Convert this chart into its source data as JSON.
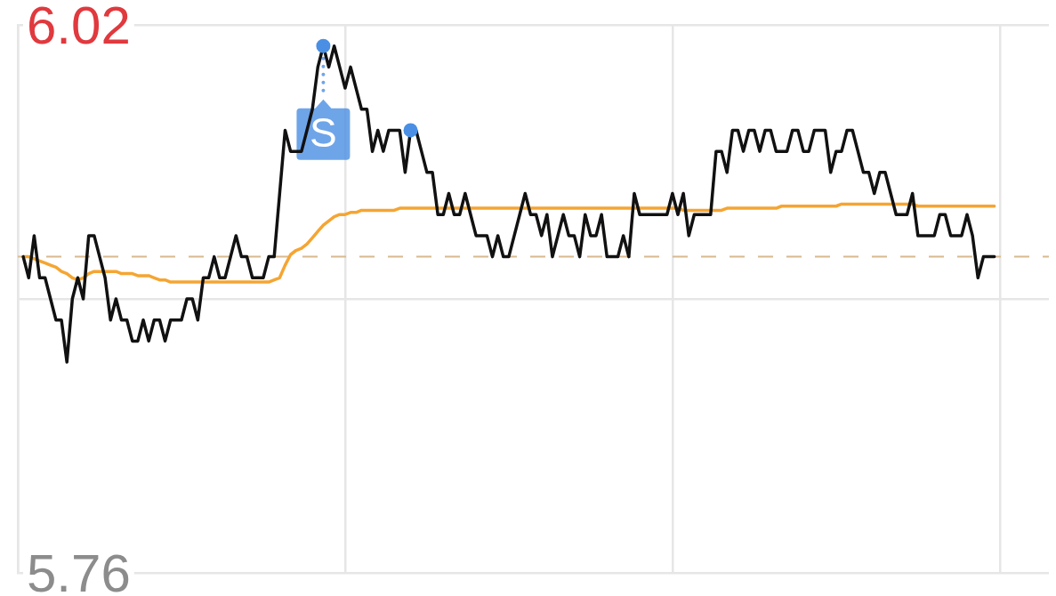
{
  "chart_data": {
    "type": "line",
    "categories": [
      null,
      null,
      null,
      null,
      null,
      null,
      null,
      null,
      null,
      null,
      null,
      null,
      null,
      null,
      null,
      null,
      null,
      null,
      null,
      null,
      null,
      null,
      null,
      null,
      null,
      null,
      null,
      null,
      null,
      null,
      null,
      null,
      null,
      null,
      null,
      null,
      null,
      null,
      null,
      null,
      null,
      null,
      null,
      null,
      null,
      null,
      null,
      null,
      null,
      null,
      null,
      null,
      null,
      null,
      null,
      null,
      null,
      null,
      null,
      null,
      null,
      null,
      null,
      null,
      null,
      null,
      null,
      null,
      null,
      null,
      null,
      null,
      null,
      null,
      null,
      null,
      null,
      null,
      null,
      null,
      null,
      null,
      null,
      null,
      null,
      null,
      null,
      null,
      null,
      null,
      null,
      null,
      null,
      null,
      null,
      null,
      null,
      null,
      null,
      null,
      null,
      null,
      null,
      null,
      null,
      null,
      null,
      null,
      null,
      null,
      null,
      null,
      null,
      null,
      null,
      null,
      null,
      null,
      null,
      null,
      null,
      null,
      null,
      null,
      null,
      null,
      null,
      null,
      null,
      null,
      null,
      null,
      null,
      null,
      null,
      null,
      null,
      null,
      null,
      null,
      null,
      null,
      null,
      null,
      null,
      null,
      null,
      null,
      null,
      null,
      null,
      null,
      null,
      null,
      null,
      null,
      null,
      null,
      null,
      null,
      null,
      null,
      null,
      null,
      null,
      null,
      null,
      null,
      null,
      null,
      null,
      null,
      null,
      null,
      null,
      null,
      null,
      null,
      null,
      null,
      null,
      null,
      null,
      null,
      null,
      null,
      null,
      null,
      null,
      null
    ],
    "series": [
      {
        "color": "#f5a532",
        "values": [
          null,
          5.91,
          5.91,
          5.909,
          5.908,
          5.907,
          5.906,
          5.905,
          5.903,
          5.902,
          5.9,
          5.899,
          5.9,
          5.902,
          5.903,
          5.903,
          5.903,
          5.903,
          5.903,
          5.902,
          5.902,
          5.902,
          5.901,
          5.901,
          5.901,
          5.9,
          5.899,
          5.899,
          5.898,
          5.898,
          5.898,
          5.898,
          5.898,
          5.898,
          5.898,
          5.898,
          5.898,
          5.898,
          5.898,
          5.898,
          5.898,
          5.898,
          5.898,
          5.898,
          5.898,
          5.898,
          5.898,
          5.899,
          5.9,
          5.906,
          5.911,
          5.913,
          5.914,
          5.916,
          5.919,
          5.922,
          5.925,
          5.927,
          5.929,
          5.93,
          5.93,
          5.931,
          5.931,
          5.932,
          5.932,
          5.932,
          5.932,
          5.932,
          5.932,
          5.932,
          5.933,
          5.933,
          5.933,
          5.933,
          5.933,
          5.933,
          5.933,
          5.933,
          5.933,
          5.933,
          5.933,
          5.933,
          5.933,
          5.933,
          5.933,
          5.933,
          5.933,
          5.933,
          5.933,
          5.933,
          5.933,
          5.933,
          5.933,
          5.933,
          5.933,
          5.933,
          5.933,
          5.933,
          5.933,
          5.933,
          5.933,
          5.933,
          5.933,
          5.933,
          5.933,
          5.933,
          5.933,
          5.933,
          5.933,
          5.933,
          5.933,
          5.933,
          5.933,
          5.933,
          5.933,
          5.933,
          5.933,
          5.933,
          5.933,
          5.933,
          5.933,
          5.933,
          5.932,
          5.932,
          5.932,
          5.932,
          5.932,
          5.932,
          5.932,
          5.932,
          5.933,
          5.933,
          5.933,
          5.933,
          5.933,
          5.933,
          5.933,
          5.933,
          5.933,
          5.933,
          5.934,
          5.934,
          5.934,
          5.934,
          5.934,
          5.934,
          5.934,
          5.934,
          5.934,
          5.934,
          5.934,
          5.935,
          5.935,
          5.935,
          5.935,
          5.935,
          5.935,
          5.935,
          5.935,
          5.935,
          5.935,
          5.935,
          5.935,
          5.935,
          5.935,
          5.934,
          5.934,
          5.934,
          5.934,
          5.934,
          5.934,
          5.934,
          5.934,
          5.934,
          5.934,
          5.934,
          5.934,
          5.934,
          5.934,
          5.934,
          null,
          null,
          null,
          null,
          null,
          null,
          null,
          null,
          null,
          null
        ]
      },
      {
        "color": "#111111",
        "values": [
          null,
          5.91,
          5.9,
          5.92,
          5.9,
          5.9,
          5.89,
          5.88,
          5.88,
          5.86,
          5.89,
          5.9,
          5.89,
          5.92,
          5.92,
          5.91,
          5.9,
          5.88,
          5.89,
          5.88,
          5.88,
          5.87,
          5.87,
          5.88,
          5.87,
          5.88,
          5.88,
          5.87,
          5.88,
          5.88,
          5.88,
          5.89,
          5.89,
          5.88,
          5.9,
          5.9,
          5.91,
          5.9,
          5.9,
          5.91,
          5.92,
          5.91,
          5.91,
          5.9,
          5.9,
          5.9,
          5.91,
          5.91,
          5.94,
          5.97,
          5.96,
          5.96,
          5.96,
          5.97,
          5.98,
          6.0,
          6.01,
          6.0,
          6.01,
          6.0,
          5.99,
          6.0,
          5.99,
          5.98,
          5.98,
          5.96,
          5.97,
          5.96,
          5.97,
          5.97,
          5.97,
          5.95,
          5.97,
          5.97,
          5.96,
          5.95,
          5.95,
          5.93,
          5.93,
          5.94,
          5.93,
          5.93,
          5.94,
          5.93,
          5.92,
          5.92,
          5.92,
          5.91,
          5.92,
          5.91,
          5.91,
          5.92,
          5.93,
          5.94,
          5.93,
          5.93,
          5.92,
          5.93,
          5.91,
          5.92,
          5.93,
          5.92,
          5.92,
          5.91,
          5.93,
          5.92,
          5.92,
          5.93,
          5.91,
          5.91,
          5.91,
          5.92,
          5.91,
          5.94,
          5.93,
          5.93,
          5.93,
          5.93,
          5.93,
          5.93,
          5.94,
          5.93,
          5.94,
          5.92,
          5.93,
          5.93,
          5.93,
          5.93,
          5.96,
          5.96,
          5.95,
          5.97,
          5.97,
          5.96,
          5.97,
          5.97,
          5.96,
          5.97,
          5.97,
          5.96,
          5.96,
          5.96,
          5.97,
          5.97,
          5.96,
          5.96,
          5.97,
          5.97,
          5.97,
          5.95,
          5.96,
          5.96,
          5.97,
          5.97,
          5.96,
          5.95,
          5.95,
          5.94,
          5.95,
          5.95,
          5.94,
          5.93,
          5.93,
          5.93,
          5.94,
          5.92,
          5.92,
          5.92,
          5.92,
          5.93,
          5.93,
          5.92,
          5.92,
          5.92,
          5.93,
          5.92,
          5.9,
          5.91,
          5.91,
          5.91,
          null,
          null,
          null,
          null,
          null,
          null,
          null,
          null,
          null,
          null
        ]
      },
      {
        "type": "scatter",
        "color": "#4a8fe3",
        "values": [
          null,
          null,
          null,
          null,
          null,
          null,
          null,
          null,
          null,
          null,
          null,
          null,
          null,
          null,
          null,
          null,
          null,
          null,
          null,
          null,
          null,
          null,
          null,
          null,
          null,
          null,
          null,
          null,
          null,
          null,
          null,
          null,
          null,
          null,
          null,
          null,
          null,
          null,
          null,
          null,
          null,
          null,
          null,
          null,
          null,
          null,
          null,
          null,
          null,
          null,
          null,
          null,
          null,
          null,
          null,
          null,
          6.01,
          null,
          null,
          null,
          null,
          null,
          null,
          null,
          null,
          null,
          null,
          null,
          null,
          null,
          null,
          null,
          5.97,
          null,
          null,
          null,
          null,
          null,
          null,
          null,
          null,
          null,
          null,
          null,
          null,
          null,
          null,
          null,
          null,
          null,
          null,
          null,
          null,
          null,
          null,
          null,
          null,
          null,
          null,
          null,
          null,
          null,
          null,
          null,
          null,
          null,
          null,
          null,
          null,
          null,
          null,
          null,
          null,
          null,
          null,
          null,
          null,
          null,
          null,
          null,
          null,
          null,
          null,
          null,
          null,
          null,
          null,
          null,
          null,
          null,
          null,
          null,
          null,
          null,
          null,
          null,
          null,
          null,
          null,
          null,
          null,
          null,
          null,
          null,
          null,
          null,
          null,
          null,
          null,
          null,
          null,
          null,
          null,
          null,
          null,
          null,
          null,
          null,
          null,
          null,
          null,
          null,
          null,
          null,
          null,
          null,
          null,
          null,
          null,
          null,
          null,
          null,
          null,
          null,
          null,
          null,
          null,
          null,
          null,
          null,
          null,
          null,
          null,
          null,
          null,
          null,
          null,
          null,
          null,
          null
        ]
      }
    ],
    "ylim": [
      5.76,
      6.02
    ],
    "yticks": [
      6.02,
      {
        "value": 5.89,
        "label": null
      },
      5.76
    ],
    "tick_labels": "y",
    "grid": true,
    "ref_lines": [
      {
        "axis": "y",
        "value": 5.91,
        "color": "#d8b98f",
        "line_style": "dashed"
      }
    ],
    "annotations": [
      {
        "text": "S",
        "y": 6.01
      }
    ]
  }
}
